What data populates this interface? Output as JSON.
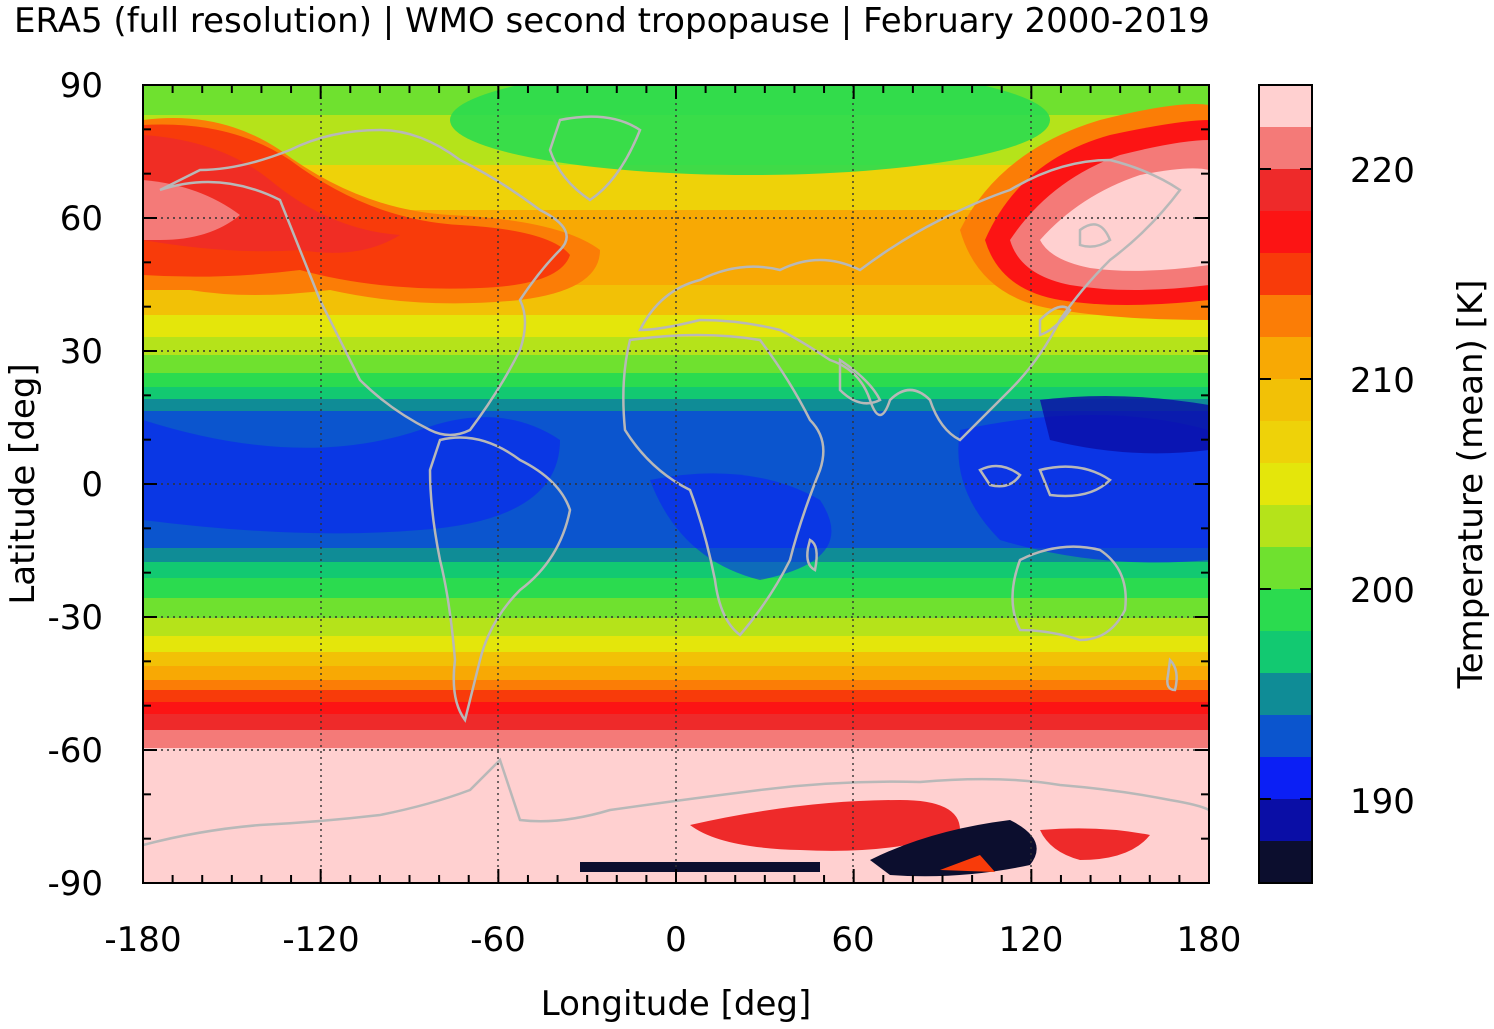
{
  "title": "ERA5 (full resolution) | WMO second tropopause | February 2000-2019",
  "map": {
    "xlabel": "Longitude [deg]",
    "ylabel": "Latitude [deg]",
    "xlim": [
      -180,
      180
    ],
    "ylim": [
      -90,
      90
    ],
    "xticks": [
      "-180",
      "-120",
      "-60",
      "0",
      "60",
      "120",
      "180"
    ],
    "yticks": [
      "90",
      "60",
      "30",
      "0",
      "-30",
      "-60",
      "-90"
    ],
    "grid": "dotted",
    "coastline_color": "#b8b8b8"
  },
  "colorbar": {
    "label": "Temperature (mean) [K]",
    "range": [
      186,
      224
    ],
    "ticks": [
      "220",
      "210",
      "200",
      "190"
    ],
    "levels": [
      {
        "color": "#ffd0d0"
      },
      {
        "color": "#f47a78"
      },
      {
        "color": "#ee2a2a"
      },
      {
        "color": "#fc1414"
      },
      {
        "color": "#f83b0a"
      },
      {
        "color": "#fb7d06"
      },
      {
        "color": "#f8a904"
      },
      {
        "color": "#f2c106"
      },
      {
        "color": "#eed209"
      },
      {
        "color": "#e4e60b"
      },
      {
        "color": "#b5e31a"
      },
      {
        "color": "#6fe12f"
      },
      {
        "color": "#2bdb4f"
      },
      {
        "color": "#12c971"
      },
      {
        "color": "#0f8c96"
      },
      {
        "color": "#0b55ce"
      },
      {
        "color": "#0b1ff5"
      },
      {
        "color": "#0a0ea6"
      },
      {
        "color": "#0c0e2e"
      }
    ]
  }
}
